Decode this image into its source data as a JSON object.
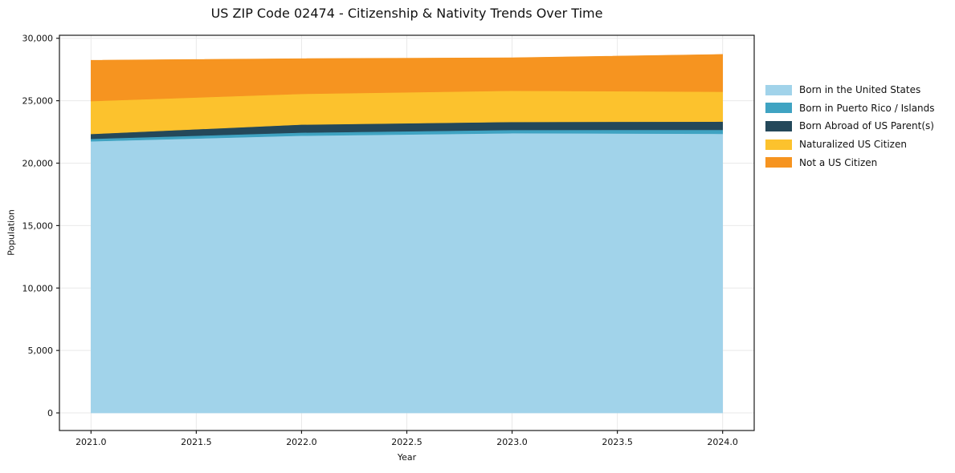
{
  "chart_data": {
    "type": "area",
    "stacked": true,
    "title": "US ZIP Code 02474 - Citizenship & Nativity Trends Over Time",
    "xlabel": "Year",
    "ylabel": "Population",
    "x": [
      2021,
      2022,
      2023,
      2024
    ],
    "series": [
      {
        "name": "Born in the United States",
        "color": "#A1D3EA",
        "values": [
          21750,
          22200,
          22400,
          22350
        ]
      },
      {
        "name": "Born in Puerto Rico / Islands",
        "color": "#3FA3C2",
        "values": [
          200,
          250,
          260,
          320
        ]
      },
      {
        "name": "Born Abroad of US Parent(s)",
        "color": "#24485A",
        "values": [
          390,
          640,
          640,
          660
        ]
      },
      {
        "name": "Naturalized US Citizen",
        "color": "#FCC22D",
        "values": [
          2630,
          2460,
          2500,
          2390
        ]
      },
      {
        "name": "Not a US Citizen",
        "color": "#F69420",
        "values": [
          3270,
          2820,
          2640,
          2990
        ]
      }
    ],
    "stack_totals": [
      28240,
      28370,
      28440,
      28710
    ],
    "x_ticks": [
      2021.0,
      2021.5,
      2022.0,
      2022.5,
      2023.0,
      2023.5,
      2024.0
    ],
    "y_ticks": [
      0,
      5000,
      10000,
      15000,
      20000,
      25000,
      30000
    ],
    "xlim": [
      2020.85,
      2024.15
    ],
    "ylim": [
      -1410,
      30240
    ],
    "grid": true,
    "grid_color": "#e9e9e9",
    "spine_color": "#1a1a1a",
    "text_color": "#111111",
    "legend_position": "right",
    "legend_frame": false
  }
}
